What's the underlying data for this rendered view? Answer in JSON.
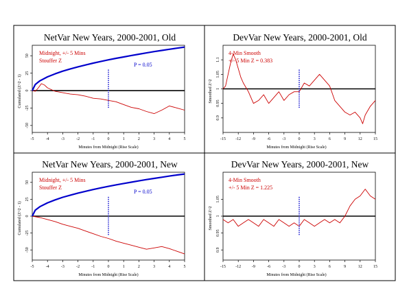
{
  "chart_data": [
    {
      "type": "line",
      "title": "NetVar New Years, 2000-2001, Old",
      "xlabel": "Minutes from Midnight (Rise Scale)",
      "ylabel": "Cumulated (Z^2 - 1)",
      "xlim": [
        -5,
        5
      ],
      "ylim": [
        -60,
        65
      ],
      "xticks": [
        -5,
        -4,
        -3,
        -2,
        -1,
        0,
        1,
        2,
        3,
        4,
        5
      ],
      "yticks": [
        -50,
        -25,
        0,
        25,
        50
      ],
      "annotations": [
        "Midnight, +/- 5 Mins",
        "Stouffer Z"
      ],
      "p_label": "P = 0.05",
      "baseline": 0,
      "marker_x": 0,
      "series": [
        {
          "color": "#cc0000",
          "x": [
            -5,
            -4.8,
            -4.6,
            -4.4,
            -4.2,
            -4,
            -3.5,
            -3,
            -2.5,
            -2,
            -1.5,
            -1,
            -0.5,
            0,
            0.5,
            1,
            1.5,
            2,
            2.5,
            3,
            3.5,
            4,
            4.5,
            5
          ],
          "values": [
            0,
            -1,
            4,
            10,
            8,
            4,
            -1,
            -3,
            -5,
            -6,
            -8,
            -11,
            -12,
            -14,
            -16,
            -20,
            -24,
            -26,
            -30,
            -33,
            -28,
            -22,
            -25,
            -28
          ]
        },
        {
          "color": "#0000cc",
          "x": [
            -5,
            -4.8,
            -4.5,
            -4,
            -3.5,
            -3,
            -2.5,
            -2,
            -1.5,
            -1,
            -0.5,
            0,
            0.5,
            1,
            1.5,
            2,
            2.5,
            3,
            3.5,
            4,
            4.5,
            5
          ],
          "values": [
            0,
            8.8,
            14,
            19.7,
            24.1,
            27.9,
            31.1,
            34.1,
            36.8,
            39.4,
            41.8,
            44.1,
            46.3,
            48.3,
            50.3,
            52.2,
            54.1,
            55.9,
            57.6,
            59.3,
            60.9,
            62.4
          ]
        }
      ]
    },
    {
      "type": "line",
      "title": "DevVar New Years, 2000-2001, Old",
      "xlabel": "Minutes from Midnight (Rise Scale)",
      "ylabel": "Smoothed Z^2",
      "xlim": [
        -15,
        15
      ],
      "ylim": [
        0.85,
        1.15
      ],
      "xticks": [
        -15,
        -12,
        -9,
        -6,
        -3,
        0,
        3,
        6,
        9,
        12,
        15
      ],
      "yticks": [
        0.9,
        0.95,
        1,
        1.05,
        1.1
      ],
      "ytick_labels": [
        "0.9",
        "0.95",
        "1",
        "1.05",
        "1.1"
      ],
      "annotations": [
        "4-Min Smooth",
        "+/- 5 Min Z = 0.383"
      ],
      "baseline": 1,
      "marker_x": 0,
      "series": [
        {
          "color": "#cc0000",
          "x": [
            -15,
            -14.5,
            -14,
            -13.5,
            -13,
            -12.5,
            -12,
            -11.5,
            -11,
            -10,
            -9,
            -8,
            -7,
            -6,
            -5,
            -4,
            -3,
            -2,
            -1,
            0,
            1,
            2,
            3,
            4,
            5,
            6,
            7,
            8,
            9,
            10,
            11,
            12,
            12.5,
            13,
            14,
            15
          ],
          "values": [
            1,
            1.01,
            1.05,
            1.09,
            1.12,
            1.1,
            1.07,
            1.04,
            1.02,
            0.99,
            0.95,
            0.96,
            0.98,
            0.95,
            0.97,
            0.99,
            0.96,
            0.98,
            0.99,
            0.99,
            1.02,
            1.01,
            1.03,
            1.05,
            1.03,
            1.01,
            0.96,
            0.94,
            0.92,
            0.91,
            0.92,
            0.9,
            0.88,
            0.91,
            0.94,
            0.96
          ]
        }
      ]
    },
    {
      "type": "line",
      "title": "NetVar New Years, 2000-2001, New",
      "xlabel": "Minutes from Midnight (Rise Scale)",
      "ylabel": "Cumulated (Z^2 - 1)",
      "xlim": [
        -5,
        5
      ],
      "ylim": [
        -65,
        65
      ],
      "xticks": [
        -5,
        -4,
        -3,
        -2,
        -1,
        0,
        1,
        2,
        3,
        4,
        5
      ],
      "yticks": [
        -50,
        -25,
        0,
        25,
        50
      ],
      "annotations": [
        "Midnight, +/- 5 Mins",
        "Stouffer Z"
      ],
      "p_label": "P = 0.05",
      "baseline": 0,
      "marker_x": 0,
      "series": [
        {
          "color": "#cc0000",
          "x": [
            -5,
            -4.5,
            -4,
            -3.5,
            -3,
            -2.5,
            -2,
            -1.5,
            -1,
            -0.5,
            0,
            0.5,
            1,
            1.5,
            2,
            2.5,
            3,
            3.5,
            4,
            4.5,
            5
          ],
          "values": [
            0,
            -2,
            -5,
            -8,
            -12,
            -15,
            -18,
            -22,
            -26,
            -30,
            -33,
            -37,
            -40,
            -43,
            -46,
            -49,
            -47,
            -45,
            -48,
            -52,
            -56
          ]
        },
        {
          "color": "#0000cc",
          "x": [
            -5,
            -4.8,
            -4.5,
            -4,
            -3.5,
            -3,
            -2.5,
            -2,
            -1.5,
            -1,
            -0.5,
            0,
            0.5,
            1,
            1.5,
            2,
            2.5,
            3,
            3.5,
            4,
            4.5,
            5
          ],
          "values": [
            0,
            8.8,
            14,
            19.7,
            24.1,
            27.9,
            31.1,
            34.1,
            36.8,
            39.4,
            41.8,
            44.1,
            46.3,
            48.3,
            50.3,
            52.2,
            54.1,
            55.9,
            57.6,
            59.3,
            60.9,
            62.4
          ]
        }
      ]
    },
    {
      "type": "line",
      "title": "DevVar New Years, 2000-2001, New",
      "xlabel": "Minutes from Midnight (Rise Scale)",
      "ylabel": "Smoothed Z^2",
      "xlim": [
        -15,
        15
      ],
      "ylim": [
        0.87,
        1.13
      ],
      "xticks": [
        -15,
        -12,
        -9,
        -6,
        -3,
        0,
        3,
        6,
        9,
        12,
        15
      ],
      "yticks": [
        0.9,
        0.95,
        1,
        1.05
      ],
      "ytick_labels": [
        "0.9",
        "0.95",
        "1",
        "1.05"
      ],
      "annotations": [
        "4-Min Smooth",
        "+/- 5 Min Z = 1.225"
      ],
      "baseline": 1,
      "marker_x": 0,
      "series": [
        {
          "color": "#cc0000",
          "x": [
            -15,
            -14,
            -13,
            -12,
            -11,
            -10,
            -9,
            -8,
            -7,
            -6,
            -5,
            -4,
            -3,
            -2,
            -1,
            0,
            1,
            2,
            3,
            4,
            5,
            6,
            7,
            8,
            9,
            10,
            11,
            12,
            13,
            14,
            15
          ],
          "values": [
            0.99,
            0.98,
            0.99,
            0.97,
            0.98,
            0.99,
            0.98,
            0.97,
            0.99,
            0.98,
            0.97,
            0.99,
            0.98,
            0.97,
            0.98,
            0.97,
            0.99,
            0.98,
            0.97,
            0.98,
            0.99,
            0.98,
            0.99,
            0.98,
            1.0,
            1.03,
            1.05,
            1.06,
            1.08,
            1.06,
            1.05
          ]
        }
      ]
    }
  ]
}
